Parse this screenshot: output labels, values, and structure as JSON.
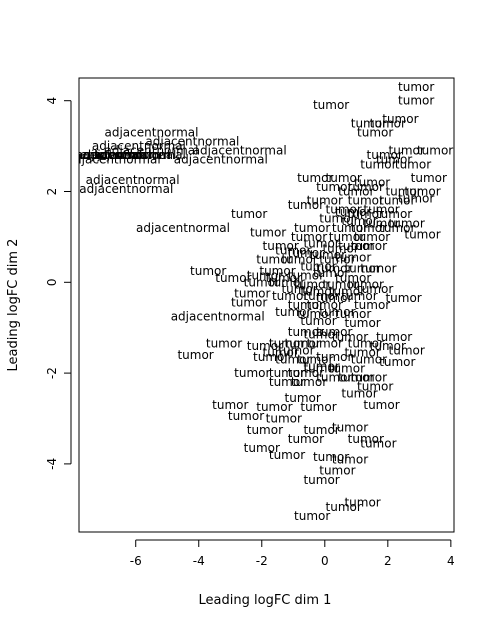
{
  "chart_data": {
    "type": "scatter",
    "title": "",
    "xlabel": "Leading logFC dim 1",
    "ylabel": "Leading logFC dim 2",
    "xlim": [
      -7.8,
      4.1
    ],
    "ylim": [
      -5.5,
      4.5
    ],
    "xticks": [
      -6,
      -4,
      -2,
      0,
      2,
      4
    ],
    "yticks": [
      -4,
      -2,
      0,
      2,
      4
    ],
    "grid": false,
    "legend": "none",
    "marker": "text-label",
    "series": [
      {
        "name": "adjacentnormal",
        "points": [
          {
            "x": -5.5,
            "y": 3.3,
            "label": "adjacentnormal"
          },
          {
            "x": -4.2,
            "y": 3.1,
            "label": "adjacentnormal"
          },
          {
            "x": -5.9,
            "y": 3.0,
            "label": "adjacentnormal"
          },
          {
            "x": -5.5,
            "y": 2.9,
            "label": "adjacentnormal"
          },
          {
            "x": -7.3,
            "y": 2.8,
            "label": "adjacentnormal"
          },
          {
            "x": -2.7,
            "y": 2.9,
            "label": "adjacentnormal"
          },
          {
            "x": -3.3,
            "y": 2.7,
            "label": "adjacentnormal"
          },
          {
            "x": -5.9,
            "y": 2.8,
            "label": "adjacentnormal"
          },
          {
            "x": -6.4,
            "y": 2.8,
            "label": "adjacentnormal"
          },
          {
            "x": -6.7,
            "y": 2.7,
            "label": "adjacentnormal"
          },
          {
            "x": -7.0,
            "y": 2.8,
            "label": "adjacentnormal"
          },
          {
            "x": -6.2,
            "y": 2.8,
            "label": "adjacentnormal"
          },
          {
            "x": -6.1,
            "y": 2.25,
            "label": "adjacentnormal"
          },
          {
            "x": -6.3,
            "y": 2.05,
            "label": "adjacentnormal"
          },
          {
            "x": -4.5,
            "y": 1.2,
            "label": "adjacentnormal"
          },
          {
            "x": -3.4,
            "y": -0.75,
            "label": "adjacentnormal"
          }
        ]
      },
      {
        "name": "tumor",
        "points": [
          {
            "x": 2.9,
            "y": 4.3,
            "label": "tumor"
          },
          {
            "x": 2.9,
            "y": 4.0,
            "label": "tumor"
          },
          {
            "x": 0.2,
            "y": 3.9,
            "label": "tumor"
          },
          {
            "x": 2.4,
            "y": 3.6,
            "label": "tumor"
          },
          {
            "x": 1.4,
            "y": 3.5,
            "label": "tumor"
          },
          {
            "x": 2.0,
            "y": 3.5,
            "label": "tumor"
          },
          {
            "x": 1.6,
            "y": 3.3,
            "label": "tumor"
          },
          {
            "x": 2.6,
            "y": 2.9,
            "label": "tumor"
          },
          {
            "x": 3.5,
            "y": 2.9,
            "label": "tumor"
          },
          {
            "x": 1.9,
            "y": 2.8,
            "label": "tumor"
          },
          {
            "x": 2.2,
            "y": 2.7,
            "label": "tumor"
          },
          {
            "x": 1.7,
            "y": 2.6,
            "label": "tumor"
          },
          {
            "x": 2.8,
            "y": 2.6,
            "label": "tumor"
          },
          {
            "x": -0.3,
            "y": 2.3,
            "label": "tumor"
          },
          {
            "x": 0.6,
            "y": 2.3,
            "label": "tumor"
          },
          {
            "x": 1.5,
            "y": 2.2,
            "label": "tumor"
          },
          {
            "x": 3.3,
            "y": 2.3,
            "label": "tumor"
          },
          {
            "x": 0.3,
            "y": 2.1,
            "label": "tumor"
          },
          {
            "x": 1.3,
            "y": 2.1,
            "label": "tumor"
          },
          {
            "x": 1.0,
            "y": 2.0,
            "label": "tumor"
          },
          {
            "x": 2.5,
            "y": 2.0,
            "label": "tumor"
          },
          {
            "x": 3.1,
            "y": 2.0,
            "label": "tumor"
          },
          {
            "x": 0.0,
            "y": 1.8,
            "label": "tumor"
          },
          {
            "x": 1.3,
            "y": 1.8,
            "label": "tumor"
          },
          {
            "x": 2.3,
            "y": 1.8,
            "label": "tumor"
          },
          {
            "x": 2.9,
            "y": 1.85,
            "label": "tumor"
          },
          {
            "x": -0.6,
            "y": 1.7,
            "label": "tumor"
          },
          {
            "x": 0.6,
            "y": 1.6,
            "label": "tumor"
          },
          {
            "x": 1.8,
            "y": 1.6,
            "label": "tumor"
          },
          {
            "x": 0.9,
            "y": 1.55,
            "label": "tumor"
          },
          {
            "x": -2.4,
            "y": 1.5,
            "label": "tumor"
          },
          {
            "x": 1.3,
            "y": 1.5,
            "label": "tumor"
          },
          {
            "x": 2.2,
            "y": 1.5,
            "label": "tumor"
          },
          {
            "x": 0.4,
            "y": 1.4,
            "label": "tumor"
          },
          {
            "x": 1.1,
            "y": 1.35,
            "label": "tumor"
          },
          {
            "x": 1.8,
            "y": 1.3,
            "label": "tumor"
          },
          {
            "x": 2.6,
            "y": 1.3,
            "label": "tumor"
          },
          {
            "x": -0.4,
            "y": 1.2,
            "label": "tumor"
          },
          {
            "x": 0.8,
            "y": 1.2,
            "label": "tumor"
          },
          {
            "x": 1.4,
            "y": 1.2,
            "label": "tumor"
          },
          {
            "x": 2.3,
            "y": 1.2,
            "label": "tumor"
          },
          {
            "x": -1.8,
            "y": 1.1,
            "label": "tumor"
          },
          {
            "x": -0.5,
            "y": 1.0,
            "label": "tumor"
          },
          {
            "x": 0.7,
            "y": 1.0,
            "label": "tumor"
          },
          {
            "x": 1.5,
            "y": 1.0,
            "label": "tumor"
          },
          {
            "x": 3.1,
            "y": 1.05,
            "label": "tumor"
          },
          {
            "x": -1.4,
            "y": 0.8,
            "label": "tumor"
          },
          {
            "x": -0.1,
            "y": 0.85,
            "label": "tumor"
          },
          {
            "x": 0.5,
            "y": 0.75,
            "label": "tumor"
          },
          {
            "x": 1.0,
            "y": 0.8,
            "label": "tumor"
          },
          {
            "x": 1.4,
            "y": 0.8,
            "label": "tumor"
          },
          {
            "x": -1.0,
            "y": 0.7,
            "label": "tumor"
          },
          {
            "x": -0.6,
            "y": 0.65,
            "label": "tumor"
          },
          {
            "x": 0.1,
            "y": 0.6,
            "label": "tumor"
          },
          {
            "x": 0.9,
            "y": 0.55,
            "label": "tumor"
          },
          {
            "x": -1.6,
            "y": 0.5,
            "label": "tumor"
          },
          {
            "x": -0.8,
            "y": 0.5,
            "label": "tumor"
          },
          {
            "x": 0.4,
            "y": 0.5,
            "label": "tumor"
          },
          {
            "x": -1.5,
            "y": 0.25,
            "label": "tumor"
          },
          {
            "x": -0.2,
            "y": 0.35,
            "label": "tumor"
          },
          {
            "x": 0.3,
            "y": 0.3,
            "label": "tumor"
          },
          {
            "x": 1.2,
            "y": 0.3,
            "label": "tumor"
          },
          {
            "x": 1.7,
            "y": 0.3,
            "label": "tumor"
          },
          {
            "x": -3.7,
            "y": 0.25,
            "label": "tumor"
          },
          {
            "x": -1.9,
            "y": 0.15,
            "label": "tumor"
          },
          {
            "x": -1.3,
            "y": 0.1,
            "label": "tumor"
          },
          {
            "x": -0.6,
            "y": 0.15,
            "label": "tumor"
          },
          {
            "x": 0.2,
            "y": 0.2,
            "label": "tumor"
          },
          {
            "x": 0.9,
            "y": 0.1,
            "label": "tumor"
          },
          {
            "x": -2.9,
            "y": 0.1,
            "label": "tumor"
          },
          {
            "x": -2.0,
            "y": 0.0,
            "label": "tumor"
          },
          {
            "x": -1.2,
            "y": 0.0,
            "label": "tumor"
          },
          {
            "x": -0.4,
            "y": -0.05,
            "label": "tumor"
          },
          {
            "x": 0.5,
            "y": -0.05,
            "label": "tumor"
          },
          {
            "x": 1.3,
            "y": -0.05,
            "label": "tumor"
          },
          {
            "x": -0.8,
            "y": -0.15,
            "label": "tumor"
          },
          {
            "x": -0.2,
            "y": -0.2,
            "label": "tumor"
          },
          {
            "x": 0.7,
            "y": -0.2,
            "label": "tumor"
          },
          {
            "x": 1.6,
            "y": -0.15,
            "label": "tumor"
          },
          {
            "x": -2.3,
            "y": -0.25,
            "label": "tumor"
          },
          {
            "x": -1.1,
            "y": -0.3,
            "label": "tumor"
          },
          {
            "x": -0.1,
            "y": -0.3,
            "label": "tumor"
          },
          {
            "x": 0.3,
            "y": -0.35,
            "label": "tumor"
          },
          {
            "x": 1.1,
            "y": -0.3,
            "label": "tumor"
          },
          {
            "x": 2.5,
            "y": -0.35,
            "label": "tumor"
          },
          {
            "x": -2.4,
            "y": -0.45,
            "label": "tumor"
          },
          {
            "x": -0.6,
            "y": -0.5,
            "label": "tumor"
          },
          {
            "x": 0.0,
            "y": -0.5,
            "label": "tumor"
          },
          {
            "x": 1.5,
            "y": -0.5,
            "label": "tumor"
          },
          {
            "x": -1.0,
            "y": -0.65,
            "label": "tumor"
          },
          {
            "x": -0.3,
            "y": -0.7,
            "label": "tumor"
          },
          {
            "x": 0.4,
            "y": -0.65,
            "label": "tumor"
          },
          {
            "x": 0.9,
            "y": -0.7,
            "label": "tumor"
          },
          {
            "x": -0.2,
            "y": -0.85,
            "label": "tumor"
          },
          {
            "x": 1.2,
            "y": -0.9,
            "label": "tumor"
          },
          {
            "x": -0.6,
            "y": -1.1,
            "label": "tumor"
          },
          {
            "x": -0.1,
            "y": -1.15,
            "label": "tumor"
          },
          {
            "x": 0.3,
            "y": -1.1,
            "label": "tumor"
          },
          {
            "x": 0.8,
            "y": -1.2,
            "label": "tumor"
          },
          {
            "x": 2.2,
            "y": -1.2,
            "label": "tumor"
          },
          {
            "x": -3.2,
            "y": -1.35,
            "label": "tumor"
          },
          {
            "x": -1.9,
            "y": -1.4,
            "label": "tumor"
          },
          {
            "x": -1.2,
            "y": -1.35,
            "label": "tumor"
          },
          {
            "x": -0.7,
            "y": -1.35,
            "label": "tumor"
          },
          {
            "x": 0.0,
            "y": -1.35,
            "label": "tumor"
          },
          {
            "x": 1.3,
            "y": -1.35,
            "label": "tumor"
          },
          {
            "x": 2.0,
            "y": -1.4,
            "label": "tumor"
          },
          {
            "x": -1.4,
            "y": -1.55,
            "label": "tumor"
          },
          {
            "x": -0.9,
            "y": -1.5,
            "label": "tumor"
          },
          {
            "x": 1.2,
            "y": -1.55,
            "label": "tumor"
          },
          {
            "x": 2.6,
            "y": -1.5,
            "label": "tumor"
          },
          {
            "x": -4.1,
            "y": -1.6,
            "label": "tumor"
          },
          {
            "x": -1.7,
            "y": -1.65,
            "label": "tumor"
          },
          {
            "x": -1.0,
            "y": -1.7,
            "label": "tumor"
          },
          {
            "x": -0.3,
            "y": -1.7,
            "label": "tumor"
          },
          {
            "x": 0.3,
            "y": -1.65,
            "label": "tumor"
          },
          {
            "x": 1.4,
            "y": -1.7,
            "label": "tumor"
          },
          {
            "x": 2.3,
            "y": -1.75,
            "label": "tumor"
          },
          {
            "x": -0.1,
            "y": -1.85,
            "label": "tumor"
          },
          {
            "x": -0.1,
            "y": -1.9,
            "label": "tumor"
          },
          {
            "x": 0.7,
            "y": -1.9,
            "label": "tumor"
          },
          {
            "x": -2.3,
            "y": -2.0,
            "label": "tumor"
          },
          {
            "x": -1.2,
            "y": -2.0,
            "label": "tumor"
          },
          {
            "x": -0.6,
            "y": -2.0,
            "label": "tumor"
          },
          {
            "x": 0.3,
            "y": -2.1,
            "label": "tumor"
          },
          {
            "x": 1.0,
            "y": -2.1,
            "label": "tumor"
          },
          {
            "x": 1.4,
            "y": -2.1,
            "label": "tumor"
          },
          {
            "x": -1.2,
            "y": -2.2,
            "label": "tumor"
          },
          {
            "x": -0.5,
            "y": -2.2,
            "label": "tumor"
          },
          {
            "x": 1.6,
            "y": -2.3,
            "label": "tumor"
          },
          {
            "x": 1.1,
            "y": -2.45,
            "label": "tumor"
          },
          {
            "x": -0.7,
            "y": -2.55,
            "label": "tumor"
          },
          {
            "x": -3.0,
            "y": -2.7,
            "label": "tumor"
          },
          {
            "x": -1.6,
            "y": -2.75,
            "label": "tumor"
          },
          {
            "x": -0.2,
            "y": -2.75,
            "label": "tumor"
          },
          {
            "x": 1.8,
            "y": -2.7,
            "label": "tumor"
          },
          {
            "x": -2.5,
            "y": -2.95,
            "label": "tumor"
          },
          {
            "x": -1.3,
            "y": -3.0,
            "label": "tumor"
          },
          {
            "x": -0.1,
            "y": -3.25,
            "label": "tumor"
          },
          {
            "x": 0.8,
            "y": -3.2,
            "label": "tumor"
          },
          {
            "x": -1.9,
            "y": -3.25,
            "label": "tumor"
          },
          {
            "x": -0.6,
            "y": -3.45,
            "label": "tumor"
          },
          {
            "x": 1.3,
            "y": -3.45,
            "label": "tumor"
          },
          {
            "x": 1.7,
            "y": -3.55,
            "label": "tumor"
          },
          {
            "x": -2.0,
            "y": -3.65,
            "label": "tumor"
          },
          {
            "x": -1.2,
            "y": -3.8,
            "label": "tumor"
          },
          {
            "x": 0.2,
            "y": -3.85,
            "label": "tumor"
          },
          {
            "x": 0.8,
            "y": -3.9,
            "label": "tumor"
          },
          {
            "x": 0.4,
            "y": -4.15,
            "label": "tumor"
          },
          {
            "x": -0.1,
            "y": -4.35,
            "label": "tumor"
          },
          {
            "x": 1.2,
            "y": -4.85,
            "label": "tumor"
          },
          {
            "x": 0.6,
            "y": -4.95,
            "label": "tumor"
          },
          {
            "x": -0.4,
            "y": -5.15,
            "label": "tumor"
          }
        ]
      }
    ]
  }
}
